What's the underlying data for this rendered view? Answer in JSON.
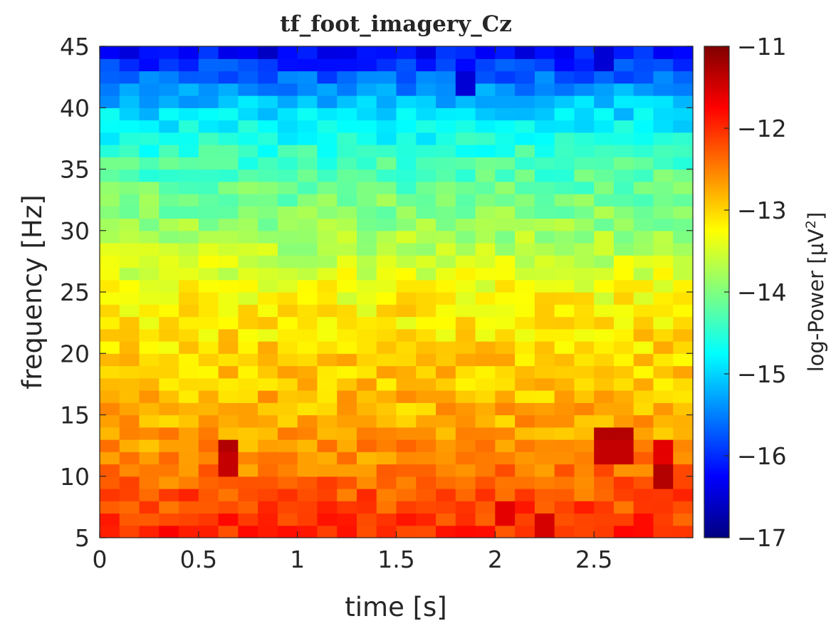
{
  "chart_data": {
    "type": "heatmap",
    "title": "tf_foot_imagery_Cz",
    "xlabel": "time [s]",
    "ylabel": "frequency [Hz]",
    "colorbar_label": "log-Power [µV²]",
    "colorbar_label_base": "log-Power [µV",
    "colorbar_label_sup": "2",
    "colorbar_label_end": "]",
    "colormap": "jet",
    "grid": false,
    "xlim": [
      0,
      3
    ],
    "ylim": [
      5,
      45
    ],
    "clim": [
      -17,
      -11
    ],
    "x_ticks": [
      0,
      0.5,
      1,
      1.5,
      2,
      2.5
    ],
    "x_tick_labels": [
      "0",
      "0.5",
      "1",
      "1.5",
      "2",
      "2.5"
    ],
    "y_ticks": [
      5,
      10,
      15,
      20,
      25,
      30,
      35,
      40,
      45
    ],
    "y_tick_labels": [
      "5",
      "10",
      "15",
      "20",
      "25",
      "30",
      "35",
      "40",
      "45"
    ],
    "colorbar_ticks": [
      -17,
      -16,
      -15,
      -14,
      -13,
      -12,
      -11
    ],
    "colorbar_tick_labels": [
      "−17",
      "−16",
      "−15",
      "−14",
      "−13",
      "−12",
      "−11"
    ],
    "time_bins": 30,
    "frequency_bins": 40,
    "frequency_profile": [
      {
        "frequency": 5,
        "log_power": -12.0
      },
      {
        "frequency": 7,
        "log_power": -12.1
      },
      {
        "frequency": 9,
        "log_power": -12.3
      },
      {
        "frequency": 12,
        "log_power": -12.6
      },
      {
        "frequency": 15,
        "log_power": -12.8
      },
      {
        "frequency": 20,
        "log_power": -13.0
      },
      {
        "frequency": 24,
        "log_power": -13.2
      },
      {
        "frequency": 28,
        "log_power": -13.6
      },
      {
        "frequency": 32,
        "log_power": -14.0
      },
      {
        "frequency": 36,
        "log_power": -14.4
      },
      {
        "frequency": 40,
        "log_power": -15.0
      },
      {
        "frequency": 43,
        "log_power": -15.8
      },
      {
        "frequency": 45,
        "log_power": -16.3
      }
    ],
    "hotspots": [
      {
        "time": 0.63,
        "frequency": 12,
        "log_power": -11.3
      },
      {
        "time": 0.63,
        "frequency": 11,
        "log_power": -11.4
      },
      {
        "time": 2.61,
        "frequency": 13,
        "log_power": -11.3
      },
      {
        "time": 2.61,
        "frequency": 12,
        "log_power": -11.4
      },
      {
        "time": 2.89,
        "frequency": 10,
        "log_power": -11.3
      },
      {
        "time": 2.89,
        "frequency": 12,
        "log_power": -11.6
      },
      {
        "time": 2.28,
        "frequency": 6,
        "log_power": -11.5
      },
      {
        "time": 2.03,
        "frequency": 7,
        "log_power": -11.6
      }
    ],
    "coldspots": [
      {
        "time": 0.83,
        "frequency": 45,
        "log_power": -16.6
      },
      {
        "time": 1.83,
        "frequency": 42,
        "log_power": -16.5
      },
      {
        "time": 2.53,
        "frequency": 44,
        "log_power": -16.5
      }
    ],
    "noise_amplitude": 0.3
  }
}
